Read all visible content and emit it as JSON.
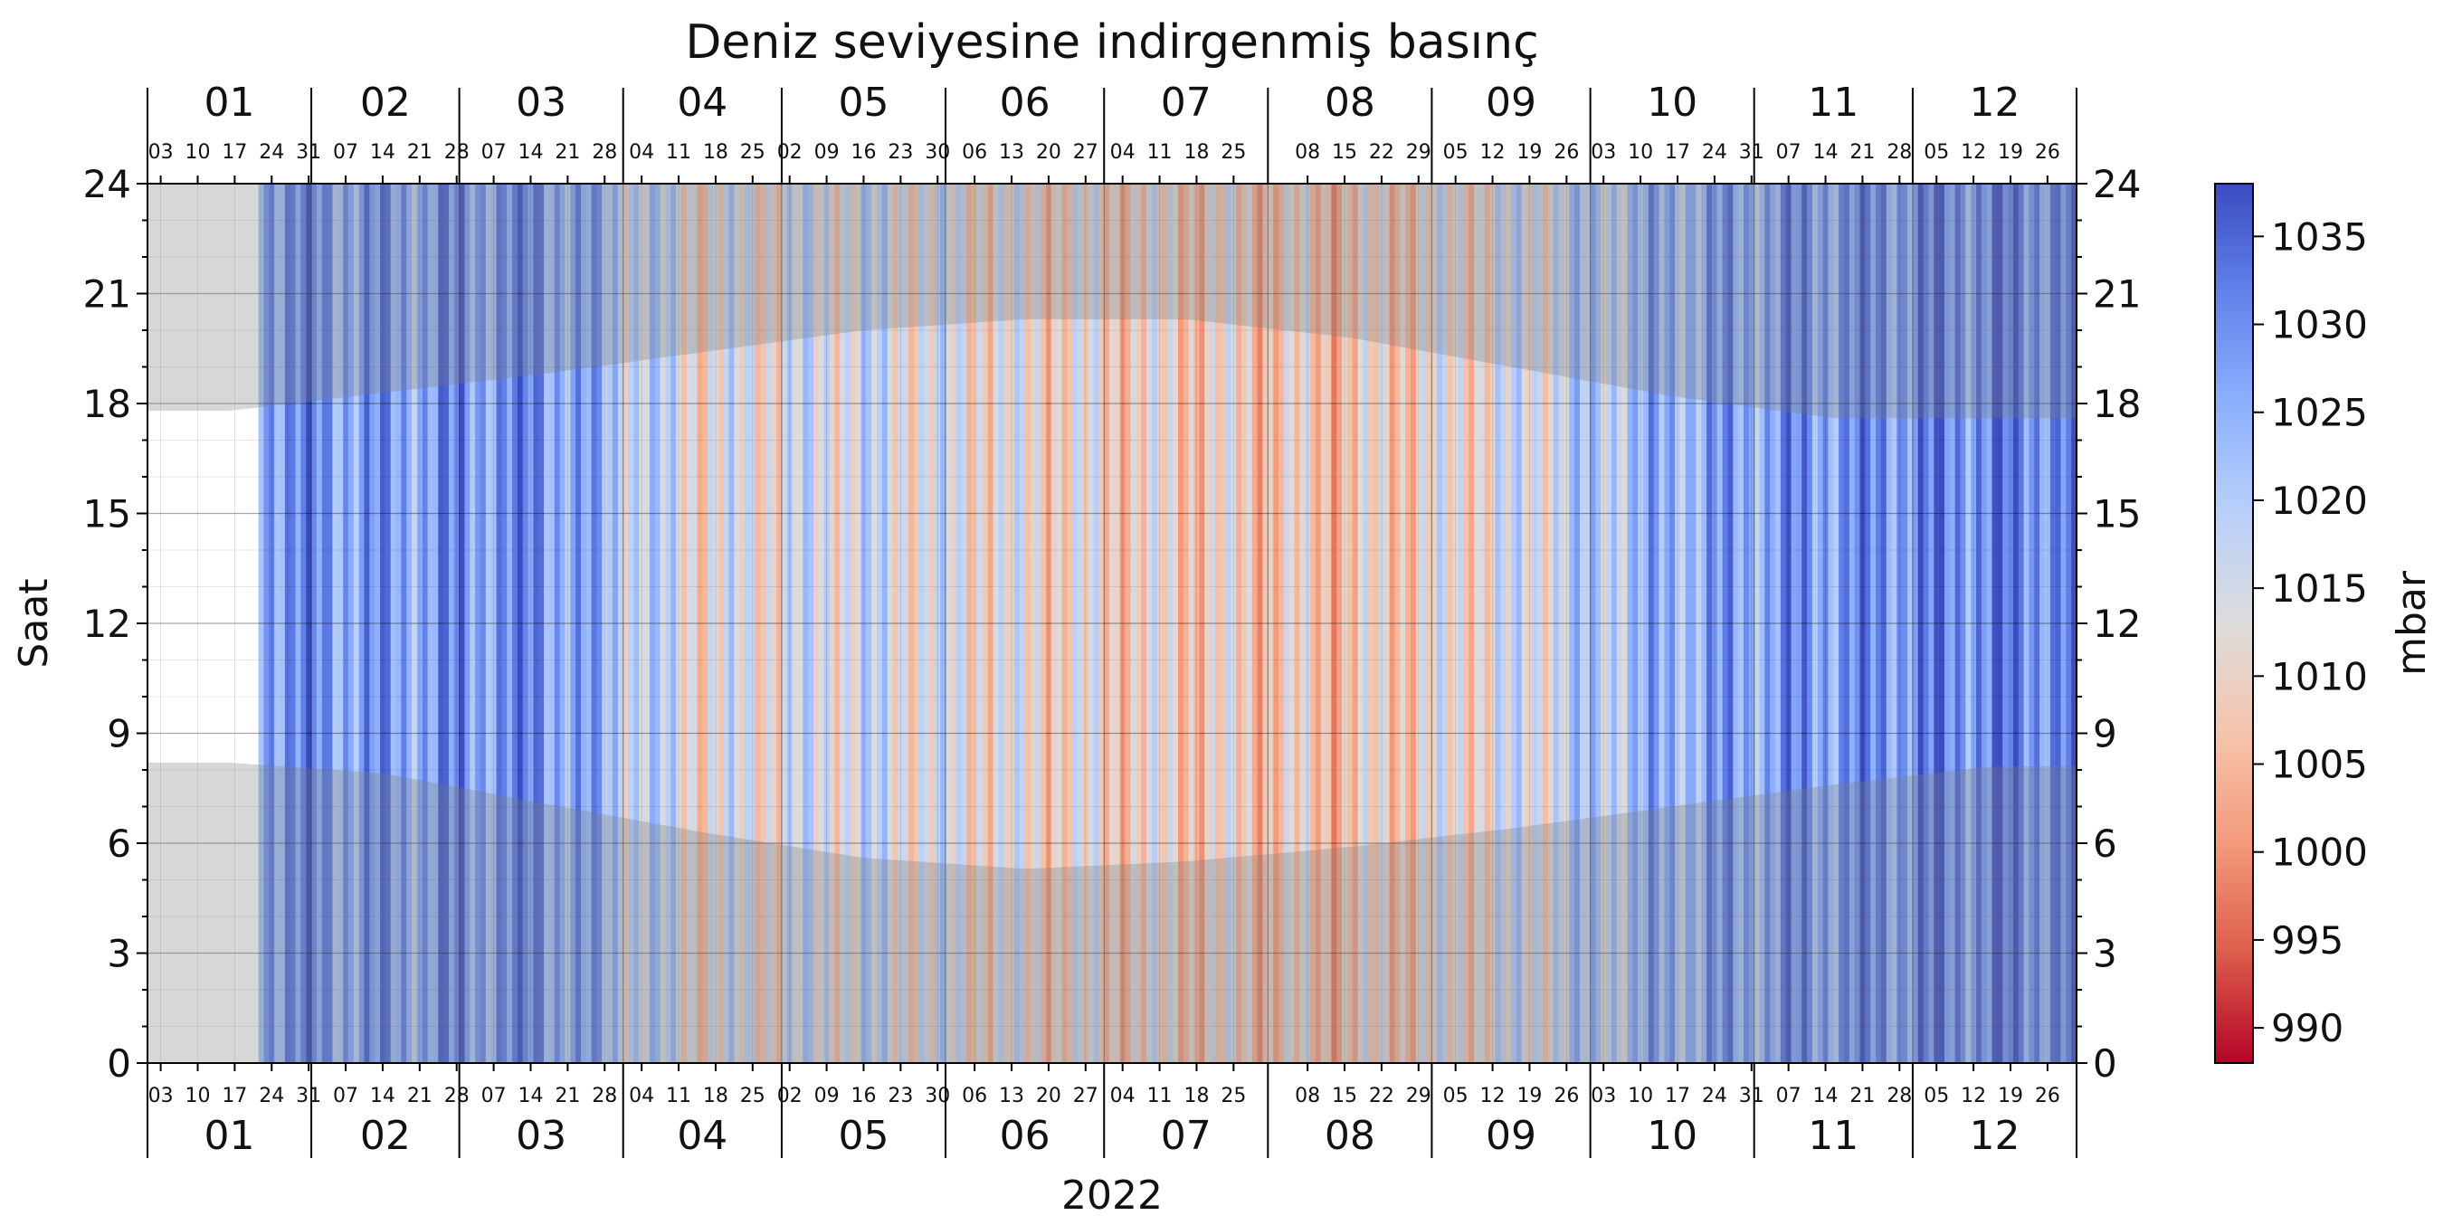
{
  "chart_data": {
    "type": "heatmap",
    "title": "Deniz seviyesine indirgenmiş basınç",
    "xlabel": "2022",
    "ylabel": "Saat",
    "colorbar_label": "mbar",
    "colormap": "coolwarm",
    "clim": [
      988,
      1038
    ],
    "colorbar_ticks": [
      990,
      995,
      1000,
      1005,
      1010,
      1015,
      1020,
      1025,
      1030,
      1035
    ],
    "ylim": [
      0,
      24
    ],
    "y_ticks": [
      0,
      3,
      6,
      9,
      12,
      15,
      18,
      21,
      24
    ],
    "grid": true,
    "night_shading": true,
    "data_start_day": 21,
    "months": [
      {
        "label": "01",
        "days": 31,
        "tick_days": [
          "03",
          "10",
          "17",
          "24",
          "31"
        ]
      },
      {
        "label": "02",
        "days": 28,
        "tick_days": [
          "07",
          "14",
          "21",
          "28"
        ]
      },
      {
        "label": "03",
        "days": 31,
        "tick_days": [
          "07",
          "14",
          "21",
          "28"
        ]
      },
      {
        "label": "04",
        "days": 30,
        "tick_days": [
          "04",
          "11",
          "18",
          "25"
        ]
      },
      {
        "label": "05",
        "days": 31,
        "tick_days": [
          "02",
          "09",
          "16",
          "23",
          "30"
        ]
      },
      {
        "label": "06",
        "days": 30,
        "tick_days": [
          "06",
          "13",
          "20",
          "27"
        ]
      },
      {
        "label": "07",
        "days": 31,
        "tick_days": [
          "04",
          "11",
          "18",
          "25"
        ]
      },
      {
        "label": "08",
        "days": 31,
        "tick_days": [
          "08",
          "15",
          "22",
          "29"
        ]
      },
      {
        "label": "09",
        "days": 30,
        "tick_days": [
          "05",
          "12",
          "19",
          "26"
        ]
      },
      {
        "label": "10",
        "days": 31,
        "tick_days": [
          "03",
          "10",
          "17",
          "24",
          "31"
        ]
      },
      {
        "label": "11",
        "days": 30,
        "tick_days": [
          "07",
          "14",
          "21",
          "28"
        ]
      },
      {
        "label": "12",
        "days": 31,
        "tick_days": [
          "05",
          "12",
          "19",
          "26"
        ]
      }
    ],
    "monthly_mean_pressure": [
      1031,
      1027,
      1030,
      1012,
      1016,
      1011,
      1009,
      1007,
      1014,
      1025,
      1029,
      1031
    ],
    "sunrise_hours": [
      8.2,
      7.9,
      7.1,
      6.3,
      5.6,
      5.3,
      5.5,
      5.9,
      6.4,
      7.0,
      7.6,
      8.1
    ],
    "sunset_hours": [
      17.8,
      18.3,
      18.8,
      19.4,
      20.0,
      20.3,
      20.3,
      19.8,
      19.0,
      18.2,
      17.6,
      17.6
    ]
  }
}
